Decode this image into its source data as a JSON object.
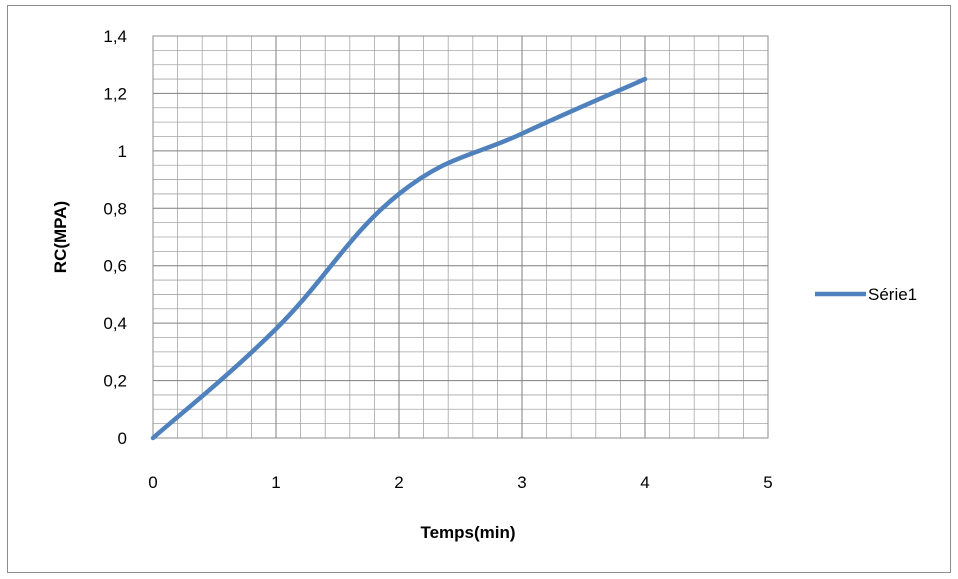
{
  "chart_data": {
    "type": "line",
    "title": "",
    "xlabel": "Temps(min)",
    "ylabel": "RC(MPA)",
    "xlim": [
      0,
      5
    ],
    "ylim": [
      0,
      1.4
    ],
    "x_ticks": [
      "0",
      "1",
      "2",
      "3",
      "4",
      "5"
    ],
    "y_ticks": [
      "0",
      "0,2",
      "0,4",
      "0,6",
      "0,8",
      "1",
      "1,2",
      "1,4"
    ],
    "grid": true,
    "legend_position": "right",
    "series": [
      {
        "name": "Série1",
        "color": "#4f81bd",
        "x": [
          0,
          1,
          2,
          3,
          4
        ],
        "y": [
          0,
          0.38,
          0.85,
          1.06,
          1.25
        ]
      }
    ]
  }
}
